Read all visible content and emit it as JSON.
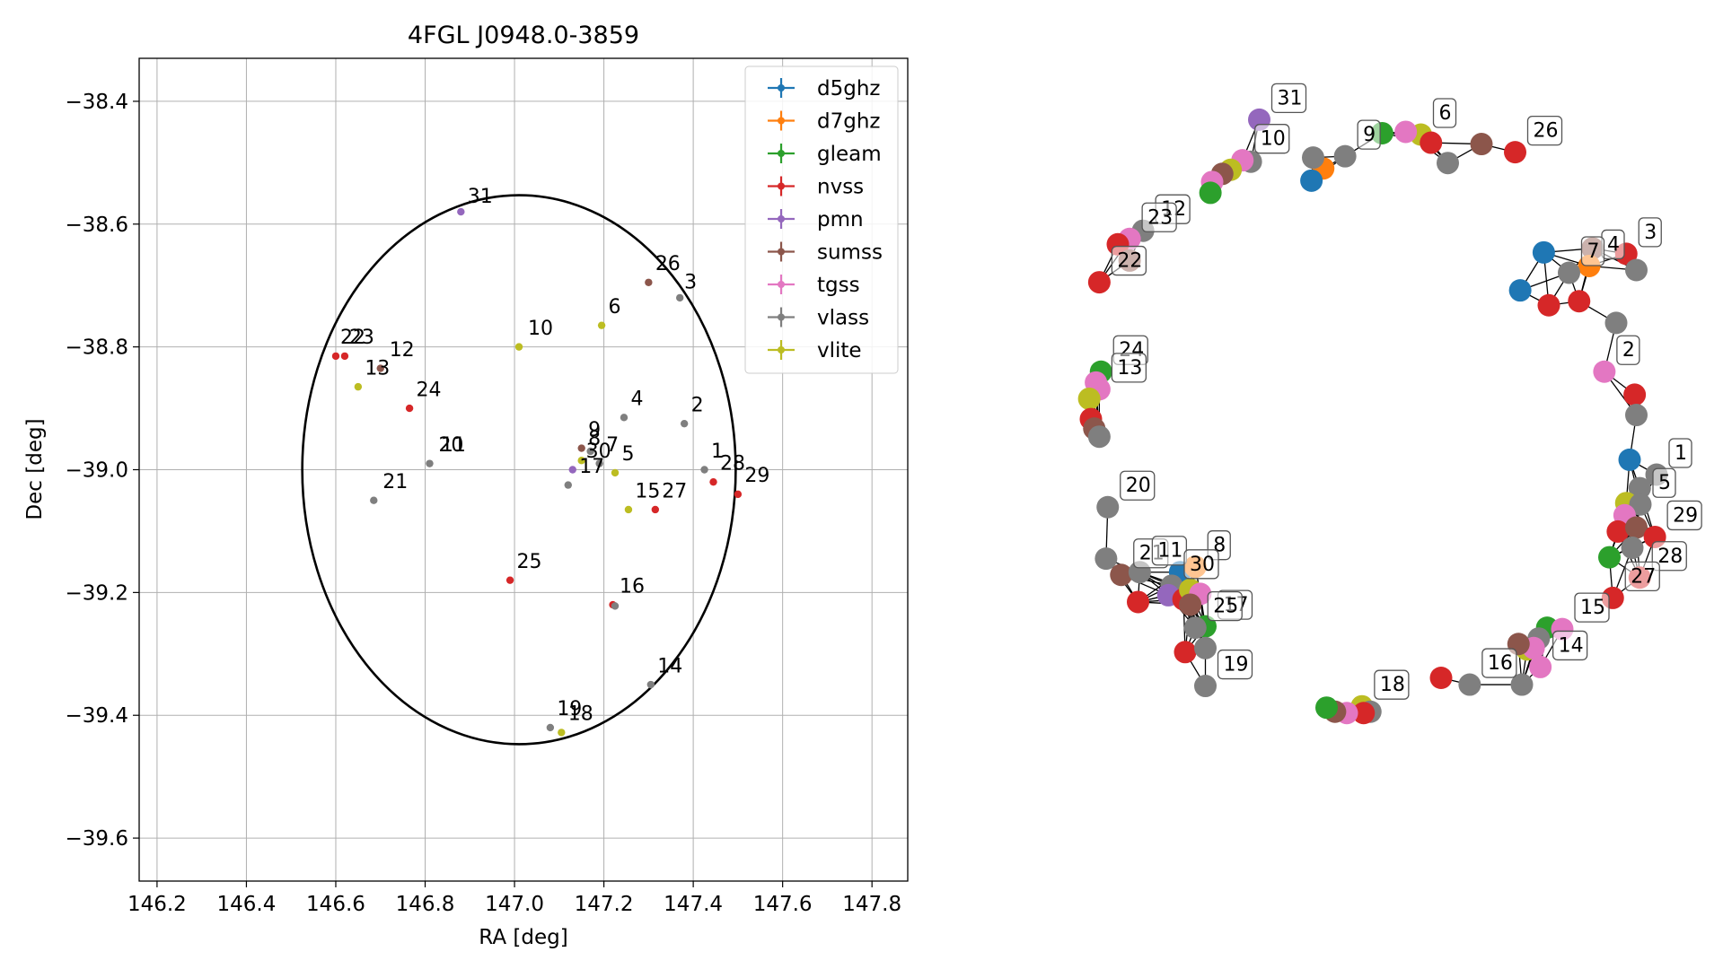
{
  "chart_data": [
    {
      "type": "scatter",
      "title": "4FGL J0948.0-3859",
      "xlabel": "RA [deg]",
      "ylabel": "Dec [deg]",
      "xlim": [
        146.16,
        147.88
      ],
      "ylim": [
        -39.67,
        -38.33
      ],
      "xticks": [
        146.2,
        146.4,
        146.6,
        146.8,
        147.0,
        147.2,
        147.4,
        147.6,
        147.8
      ],
      "yticks": [
        -38.4,
        -38.6,
        -38.8,
        -39.0,
        -39.2,
        -39.4,
        -39.6
      ],
      "xtick_labels": [
        "146.2",
        "146.4",
        "146.6",
        "146.8",
        "147.0",
        "147.2",
        "147.4",
        "147.6",
        "147.8"
      ],
      "ytick_labels": [
        "−38.4",
        "−38.6",
        "−38.8",
        "−39.0",
        "−39.2",
        "−39.4",
        "−39.6"
      ],
      "grid": true,
      "legend_position": "top-right",
      "ellipse": {
        "center": [
          147.01,
          -39.0
        ],
        "semi_axis_ra": 0.485,
        "semi_axis_dec": 0.447,
        "color": "#000000"
      },
      "legend": [
        {
          "name": "d5ghz",
          "color": "#1f77b4"
        },
        {
          "name": "d7ghz",
          "color": "#ff7f0e"
        },
        {
          "name": "gleam",
          "color": "#2ca02c"
        },
        {
          "name": "nvss",
          "color": "#d62728"
        },
        {
          "name": "pmn",
          "color": "#9467bd"
        },
        {
          "name": "sumss",
          "color": "#8c564b"
        },
        {
          "name": "tgss",
          "color": "#e377c2"
        },
        {
          "name": "vlass",
          "color": "#7f7f7f"
        },
        {
          "name": "vlite",
          "color": "#bcbd22"
        }
      ],
      "points": [
        {
          "ra": 146.88,
          "dec": -38.58,
          "color": "#9467bd"
        },
        {
          "ra": 147.3,
          "dec": -38.695,
          "color": "#8c564b"
        },
        {
          "ra": 147.37,
          "dec": -38.72,
          "color": "#7f7f7f"
        },
        {
          "ra": 147.195,
          "dec": -38.765,
          "color": "#bcbd22"
        },
        {
          "ra": 147.01,
          "dec": -38.8,
          "color": "#bcbd22"
        },
        {
          "ra": 146.6,
          "dec": -38.815,
          "color": "#d62728"
        },
        {
          "ra": 146.62,
          "dec": -38.815,
          "color": "#d62728"
        },
        {
          "ra": 146.7,
          "dec": -38.835,
          "color": "#8c564b"
        },
        {
          "ra": 146.65,
          "dec": -38.865,
          "color": "#bcbd22"
        },
        {
          "ra": 146.765,
          "dec": -38.9,
          "color": "#d62728"
        },
        {
          "ra": 147.245,
          "dec": -38.915,
          "color": "#7f7f7f"
        },
        {
          "ra": 147.38,
          "dec": -38.925,
          "color": "#7f7f7f"
        },
        {
          "ra": 146.81,
          "dec": -38.99,
          "color": "#7f7f7f"
        },
        {
          "ra": 147.15,
          "dec": -38.965,
          "color": "#8c564b"
        },
        {
          "ra": 147.17,
          "dec": -38.97,
          "color": "#7f7f7f"
        },
        {
          "ra": 147.15,
          "dec": -38.985,
          "color": "#bcbd22"
        },
        {
          "ra": 147.19,
          "dec": -38.99,
          "color": "#7f7f7f"
        },
        {
          "ra": 147.225,
          "dec": -39.005,
          "color": "#bcbd22"
        },
        {
          "ra": 147.13,
          "dec": -39.0,
          "color": "#9467bd"
        },
        {
          "ra": 147.12,
          "dec": -39.025,
          "color": "#7f7f7f"
        },
        {
          "ra": 147.425,
          "dec": -39.0,
          "color": "#7f7f7f"
        },
        {
          "ra": 147.445,
          "dec": -39.02,
          "color": "#d62728"
        },
        {
          "ra": 147.5,
          "dec": -39.04,
          "color": "#d62728"
        },
        {
          "ra": 146.685,
          "dec": -39.05,
          "color": "#7f7f7f"
        },
        {
          "ra": 147.255,
          "dec": -39.065,
          "color": "#bcbd22"
        },
        {
          "ra": 147.315,
          "dec": -39.065,
          "color": "#d62728"
        },
        {
          "ra": 146.99,
          "dec": -39.18,
          "color": "#d62728"
        },
        {
          "ra": 147.22,
          "dec": -39.22,
          "color": "#d62728"
        },
        {
          "ra": 147.225,
          "dec": -39.222,
          "color": "#7f7f7f"
        },
        {
          "ra": 147.305,
          "dec": -39.35,
          "color": "#7f7f7f"
        },
        {
          "ra": 147.08,
          "dec": -39.42,
          "color": "#7f7f7f"
        },
        {
          "ra": 147.105,
          "dec": -39.428,
          "color": "#bcbd22"
        }
      ],
      "labels": [
        {
          "text": "31",
          "ra": 146.895,
          "dec": -38.565
        },
        {
          "text": "26",
          "ra": 147.315,
          "dec": -38.675
        },
        {
          "text": "3",
          "ra": 147.38,
          "dec": -38.705
        },
        {
          "text": "6",
          "ra": 147.21,
          "dec": -38.745
        },
        {
          "text": "10",
          "ra": 147.03,
          "dec": -38.78
        },
        {
          "text": "22",
          "ra": 146.61,
          "dec": -38.795
        },
        {
          "text": "23",
          "ra": 146.63,
          "dec": -38.795
        },
        {
          "text": "12",
          "ra": 146.72,
          "dec": -38.815
        },
        {
          "text": "13",
          "ra": 146.665,
          "dec": -38.845
        },
        {
          "text": "24",
          "ra": 146.78,
          "dec": -38.88
        },
        {
          "text": "4",
          "ra": 147.26,
          "dec": -38.895
        },
        {
          "text": "2",
          "ra": 147.395,
          "dec": -38.905
        },
        {
          "text": "9",
          "ra": 147.165,
          "dec": -38.945
        },
        {
          "text": "8",
          "ra": 147.165,
          "dec": -38.96
        },
        {
          "text": "7",
          "ra": 147.205,
          "dec": -38.97
        },
        {
          "text": "20",
          "ra": 146.83,
          "dec": -38.97
        },
        {
          "text": "11",
          "ra": 146.835,
          "dec": -38.97
        },
        {
          "text": "30",
          "ra": 147.16,
          "dec": -38.98
        },
        {
          "text": "5",
          "ra": 147.24,
          "dec": -38.985
        },
        {
          "text": "1",
          "ra": 147.44,
          "dec": -38.98
        },
        {
          "text": "28",
          "ra": 147.46,
          "dec": -39.0
        },
        {
          "text": "17",
          "ra": 147.145,
          "dec": -39.005
        },
        {
          "text": "29",
          "ra": 147.515,
          "dec": -39.02
        },
        {
          "text": "21",
          "ra": 146.705,
          "dec": -39.03
        },
        {
          "text": "15",
          "ra": 147.27,
          "dec": -39.045
        },
        {
          "text": "27",
          "ra": 147.33,
          "dec": -39.045
        },
        {
          "text": "25",
          "ra": 147.005,
          "dec": -39.16
        },
        {
          "text": "16",
          "ra": 147.235,
          "dec": -39.2
        },
        {
          "text": "14",
          "ra": 147.32,
          "dec": -39.33
        },
        {
          "text": "19",
          "ra": 147.095,
          "dec": -39.4
        },
        {
          "text": "18",
          "ra": 147.12,
          "dec": -39.408
        }
      ]
    },
    {
      "type": "scatter",
      "nodes": [
        {
          "x": 1.0,
          "y": 0.0,
          "color": "#7f7f7f",
          "label": "1"
        },
        {
          "x": 0.92,
          "y": 0.055,
          "color": "#1f77b4"
        },
        {
          "x": 0.95,
          "y": -0.05,
          "color": "#7f7f7f"
        },
        {
          "x": 0.91,
          "y": -0.105,
          "color": "#bcbd22"
        },
        {
          "x": 0.952,
          "y": -0.11,
          "color": "#7f7f7f",
          "label": "5"
        },
        {
          "x": 0.905,
          "y": -0.15,
          "color": "#e377c2"
        },
        {
          "x": 0.885,
          "y": -0.21,
          "color": "#d62728"
        },
        {
          "x": 0.94,
          "y": -0.195,
          "color": "#8c564b"
        },
        {
          "x": 0.928,
          "y": -0.27,
          "color": "#7f7f7f"
        },
        {
          "x": 0.86,
          "y": -0.305,
          "color": "#2ca02c"
        },
        {
          "x": 0.995,
          "y": -0.23,
          "color": "#d62728",
          "label": "29"
        },
        {
          "x": 0.95,
          "y": -0.38,
          "color": "#d62728",
          "label": "28"
        },
        {
          "x": 0.87,
          "y": -0.455,
          "color": "#d62728",
          "label": "27"
        },
        {
          "x": 0.845,
          "y": 0.38,
          "color": "#e377c2",
          "label": "2"
        },
        {
          "x": 0.935,
          "y": 0.295,
          "color": "#d62728"
        },
        {
          "x": 0.94,
          "y": 0.22,
          "color": "#7f7f7f"
        },
        {
          "x": 0.91,
          "y": 0.815,
          "color": "#d62728",
          "label": "3"
        },
        {
          "x": 0.81,
          "y": 0.835,
          "color": "#8c564b"
        },
        {
          "x": 0.94,
          "y": 0.755,
          "color": "#7f7f7f"
        },
        {
          "x": 0.8,
          "y": 0.77,
          "color": "#ff7f0e",
          "label": "4"
        },
        {
          "x": 0.74,
          "y": 0.745,
          "color": "#7f7f7f",
          "label": "7"
        },
        {
          "x": 0.665,
          "y": 0.82,
          "color": "#1f77b4"
        },
        {
          "x": 0.595,
          "y": 0.68,
          "color": "#1f77b4"
        },
        {
          "x": 0.68,
          "y": 0.625,
          "color": "#d62728"
        },
        {
          "x": 0.77,
          "y": 0.64,
          "color": "#d62728"
        },
        {
          "x": 0.88,
          "y": 0.56,
          "color": "#7f7f7f"
        },
        {
          "x": 0.58,
          "y": 1.19,
          "color": "#d62728",
          "label": "26"
        },
        {
          "x": 0.48,
          "y": 1.22,
          "color": "#8c564b"
        },
        {
          "x": 0.3,
          "y": 1.255,
          "color": "#bcbd22",
          "label": "6"
        },
        {
          "x": 0.255,
          "y": 1.265,
          "color": "#e377c2"
        },
        {
          "x": 0.33,
          "y": 1.225,
          "color": "#d62728"
        },
        {
          "x": 0.38,
          "y": 1.15,
          "color": "#7f7f7f"
        },
        {
          "x": 0.185,
          "y": 1.26,
          "color": "#2ca02c"
        },
        {
          "x": 0.075,
          "y": 1.175,
          "color": "#7f7f7f",
          "label": "9"
        },
        {
          "x": 0.01,
          "y": 1.13,
          "color": "#ff7f0e"
        },
        {
          "x": -0.02,
          "y": 1.17,
          "color": "#7f7f7f"
        },
        {
          "x": -0.025,
          "y": 1.085,
          "color": "#1f77b4"
        },
        {
          "x": -0.18,
          "y": 1.31,
          "color": "#9467bd",
          "label": "31"
        },
        {
          "x": -0.205,
          "y": 1.155,
          "color": "#7f7f7f"
        },
        {
          "x": -0.23,
          "y": 1.16,
          "color": "#e377c2",
          "label": "10"
        },
        {
          "x": -0.265,
          "y": 1.125,
          "color": "#bcbd22"
        },
        {
          "x": -0.29,
          "y": 1.11,
          "color": "#8c564b"
        },
        {
          "x": -0.32,
          "y": 1.08,
          "color": "#e377c2"
        },
        {
          "x": -0.325,
          "y": 1.04,
          "color": "#2ca02c"
        },
        {
          "x": -0.525,
          "y": 0.9,
          "color": "#7f7f7f",
          "label": "12"
        },
        {
          "x": -0.565,
          "y": 0.87,
          "color": "#e377c2",
          "label": "23"
        },
        {
          "x": -0.6,
          "y": 0.85,
          "color": "#d62728"
        },
        {
          "x": -0.565,
          "y": 0.79,
          "color": "#8c564b"
        },
        {
          "x": -0.655,
          "y": 0.71,
          "color": "#d62728",
          "label": "22"
        },
        {
          "x": -0.65,
          "y": 0.38,
          "color": "#2ca02c",
          "label": "24"
        },
        {
          "x": -0.665,
          "y": 0.34,
          "color": "#e377c2"
        },
        {
          "x": -0.655,
          "y": 0.315,
          "color": "#e377c2",
          "label": "13"
        },
        {
          "x": -0.685,
          "y": 0.28,
          "color": "#bcbd22"
        },
        {
          "x": -0.68,
          "y": 0.205,
          "color": "#d62728"
        },
        {
          "x": -0.67,
          "y": 0.17,
          "color": "#8c564b"
        },
        {
          "x": -0.655,
          "y": 0.14,
          "color": "#7f7f7f"
        },
        {
          "x": -0.63,
          "y": -0.12,
          "color": "#7f7f7f",
          "label": "20"
        },
        {
          "x": -0.635,
          "y": -0.31,
          "color": "#7f7f7f"
        },
        {
          "x": -0.59,
          "y": -0.37,
          "color": "#8c564b",
          "label": "21"
        },
        {
          "x": -0.535,
          "y": -0.36,
          "color": "#7f7f7f",
          "label": "11"
        },
        {
          "x": -0.54,
          "y": -0.47,
          "color": "#d62728"
        },
        {
          "x": -0.415,
          "y": -0.36,
          "color": "#1f77b4"
        },
        {
          "x": -0.37,
          "y": -0.34,
          "color": "#ff7f0e",
          "label": "8"
        },
        {
          "x": -0.44,
          "y": -0.41,
          "color": "#7f7f7f",
          "label": "30"
        },
        {
          "x": -0.45,
          "y": -0.445,
          "color": "#9467bd"
        },
        {
          "x": -0.405,
          "y": -0.46,
          "color": "#d62728"
        },
        {
          "x": -0.385,
          "y": -0.425,
          "color": "#bcbd22"
        },
        {
          "x": -0.355,
          "y": -0.44,
          "color": "#e377c2"
        },
        {
          "x": -0.385,
          "y": -0.48,
          "color": "#8c564b"
        },
        {
          "x": -0.34,
          "y": -0.56,
          "color": "#2ca02c",
          "label": "17"
        },
        {
          "x": -0.37,
          "y": -0.565,
          "color": "#7f7f7f",
          "label": "25"
        },
        {
          "x": -0.4,
          "y": -0.655,
          "color": "#d62728"
        },
        {
          "x": -0.34,
          "y": -0.64,
          "color": "#7f7f7f"
        },
        {
          "x": -0.34,
          "y": -0.78,
          "color": "#7f7f7f",
          "label": "19"
        },
        {
          "x": 0.675,
          "y": -0.565,
          "color": "#2ca02c"
        },
        {
          "x": 0.72,
          "y": -0.57,
          "color": "#e377c2",
          "label": "15"
        },
        {
          "x": 0.65,
          "y": -0.605,
          "color": "#7f7f7f"
        },
        {
          "x": 0.615,
          "y": -0.645,
          "color": "#bcbd22"
        },
        {
          "x": 0.635,
          "y": -0.64,
          "color": "#e377c2"
        },
        {
          "x": 0.59,
          "y": -0.625,
          "color": "#8c564b"
        },
        {
          "x": 0.655,
          "y": -0.71,
          "color": "#e377c2",
          "label": "14"
        },
        {
          "x": 0.6,
          "y": -0.775,
          "color": "#7f7f7f"
        },
        {
          "x": 0.445,
          "y": -0.775,
          "color": "#7f7f7f",
          "label": "16"
        },
        {
          "x": 0.36,
          "y": -0.75,
          "color": "#d62728"
        },
        {
          "x": 0.125,
          "y": -0.855,
          "color": "#bcbd22",
          "label": "18"
        },
        {
          "x": 0.15,
          "y": -0.875,
          "color": "#7f7f7f"
        },
        {
          "x": 0.13,
          "y": -0.88,
          "color": "#d62728"
        },
        {
          "x": 0.08,
          "y": -0.88,
          "color": "#e377c2"
        },
        {
          "x": 0.045,
          "y": -0.875,
          "color": "#8c564b"
        },
        {
          "x": 0.02,
          "y": -0.86,
          "color": "#2ca02c"
        }
      ]
    }
  ]
}
